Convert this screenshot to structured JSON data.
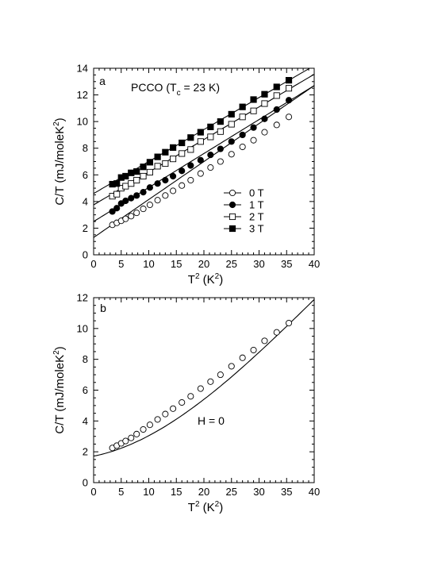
{
  "chart_data": [
    {
      "panel": "a",
      "type": "scatter",
      "annotation": "PCCO (T",
      "annotation_sub": "c",
      "annotation_tail": " = 23 K)",
      "xlabel": "T",
      "xlabel_sup": "2",
      "xlabel_tail": " (K",
      "xlabel_sup2": "2",
      "xlabel_end": ")",
      "ylabel": "C/T  (mJ/moleK",
      "ylabel_sup": "2",
      "ylabel_end": ")",
      "xlim": [
        0,
        40
      ],
      "ylim": [
        0,
        14
      ],
      "xticks": [
        0,
        5,
        10,
        15,
        20,
        25,
        30,
        35,
        40
      ],
      "yticks": [
        0,
        2,
        4,
        6,
        8,
        10,
        12,
        14
      ],
      "grid": false,
      "legend_position": "middle-right",
      "series": [
        {
          "name": "0 T",
          "marker": "open-circle",
          "x": [
            3.4,
            4.2,
            5.0,
            5.8,
            6.8,
            7.8,
            9.0,
            10.2,
            11.6,
            13.0,
            14.4,
            16.0,
            17.6,
            19.4,
            21.2,
            23.0,
            25.0,
            27.0,
            29.0,
            31.0,
            33.2,
            35.4
          ],
          "y": [
            2.25,
            2.4,
            2.55,
            2.7,
            2.9,
            3.15,
            3.45,
            3.75,
            4.1,
            4.45,
            4.8,
            5.2,
            5.6,
            6.1,
            6.55,
            7.0,
            7.55,
            8.1,
            8.6,
            9.2,
            9.75,
            10.35
          ],
          "fit": [
            1.3,
            0.285
          ]
        },
        {
          "name": "1 T",
          "marker": "filled-circle",
          "x": [
            3.4,
            4.2,
            5.0,
            5.8,
            6.8,
            7.8,
            9.0,
            10.2,
            11.6,
            13.0,
            14.4,
            16.0,
            17.6,
            19.4,
            21.2,
            23.0,
            25.0,
            27.0,
            29.0,
            31.0,
            33.2,
            35.4
          ],
          "y": [
            3.25,
            3.5,
            3.85,
            4.05,
            4.25,
            4.45,
            4.7,
            5.05,
            5.35,
            5.6,
            5.9,
            6.3,
            6.7,
            7.1,
            7.5,
            7.95,
            8.5,
            9.0,
            9.55,
            10.2,
            10.9,
            11.6
          ],
          "fit": [
            2.5,
            0.255
          ]
        },
        {
          "name": "2 T",
          "marker": "open-square",
          "x": [
            3.4,
            4.2,
            5.0,
            5.8,
            6.8,
            7.8,
            9.0,
            10.2,
            11.6,
            13.0,
            14.4,
            16.0,
            17.6,
            19.4,
            21.2,
            23.0,
            25.0,
            27.0,
            29.0,
            31.0,
            33.2,
            35.4
          ],
          "y": [
            4.4,
            4.55,
            5.0,
            5.15,
            5.35,
            5.6,
            5.9,
            6.2,
            6.65,
            6.85,
            7.2,
            7.6,
            7.9,
            8.5,
            8.85,
            9.25,
            9.8,
            10.35,
            10.8,
            11.35,
            11.95,
            12.5
          ],
          "fit": [
            3.75,
            0.245
          ]
        },
        {
          "name": "3 T",
          "marker": "filled-square",
          "x": [
            3.4,
            4.2,
            5.0,
            5.8,
            6.8,
            7.8,
            9.0,
            10.2,
            11.6,
            13.0,
            14.4,
            16.0,
            17.6,
            19.4,
            21.2,
            23.0,
            25.0,
            27.0,
            29.0,
            31.0,
            33.2,
            35.4
          ],
          "y": [
            5.3,
            5.35,
            5.8,
            5.9,
            6.15,
            6.25,
            6.6,
            6.95,
            7.35,
            7.7,
            8.05,
            8.4,
            8.8,
            9.2,
            9.6,
            10.0,
            10.55,
            11.1,
            11.65,
            12.05,
            12.6,
            13.1
          ],
          "fit": [
            4.6,
            0.24
          ]
        }
      ]
    },
    {
      "panel": "b",
      "type": "scatter",
      "annotation": "H = 0",
      "xlabel": "T",
      "xlabel_sup": "2",
      "xlabel_tail": " (K",
      "xlabel_sup2": "2",
      "xlabel_end": ")",
      "ylabel": "C/T  (mJ/moleK",
      "ylabel_sup": "2",
      "ylabel_end": ")",
      "xlim": [
        0,
        40
      ],
      "ylim": [
        0,
        12
      ],
      "xticks": [
        0,
        5,
        10,
        15,
        20,
        25,
        30,
        35,
        40
      ],
      "yticks": [
        0,
        2,
        4,
        6,
        8,
        10,
        12
      ],
      "grid": false,
      "series": [
        {
          "marker": "open-circle",
          "x": [
            3.4,
            4.2,
            5.0,
            5.8,
            6.8,
            7.8,
            9.0,
            10.2,
            11.6,
            13.0,
            14.4,
            16.0,
            17.6,
            19.4,
            21.2,
            23.0,
            25.0,
            27.0,
            29.0,
            31.0,
            33.2,
            35.4
          ],
          "y": [
            2.25,
            2.4,
            2.55,
            2.7,
            2.9,
            3.15,
            3.45,
            3.75,
            4.1,
            4.45,
            4.8,
            5.2,
            5.6,
            6.1,
            6.55,
            7.0,
            7.55,
            8.1,
            8.6,
            9.2,
            9.75,
            10.35
          ],
          "fit_curve": [
            1.72,
            0.07,
            0.0068,
            -5.5e-05
          ]
        }
      ]
    }
  ]
}
